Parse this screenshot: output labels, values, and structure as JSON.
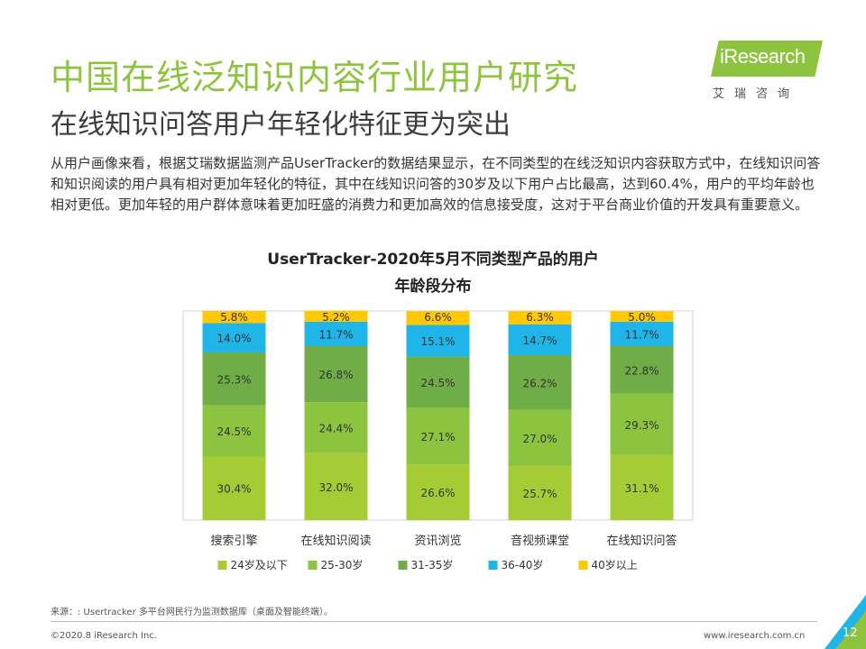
{
  "page": {
    "title": "中国在线泛知识内容行业用户研究",
    "subtitle": "在线知识问答用户年轻化特征更为突出",
    "intro": "从用户画像来看，根据艾瑞数据监测产品UserTracker的数据结果显示，在不同类型的在线泛知识内容获取方式中，在线知识问答和知识阅读的用户具有相对更加年轻化的特征，其中在线知识问答的30岁及以下用户占比最高，达到60.4%，用户的平均年龄也相对更低。更加年轻的用户群体意味着更加旺盛的消费力和更加高效的信息接受度，这对于平台商业价值的开发具有重要意义。",
    "logo_text": "iResearch",
    "logo_cn": "艾瑞咨询",
    "source": "来源：: Usertracker 多平台网民行为监测数据库（桌面及智能终端）。",
    "copyright": "©2020.8 iResearch Inc.",
    "website": "www.iresearch.com.cn",
    "page_number": "12",
    "brand_color": "#8cc43f"
  },
  "chart_data": {
    "type": "bar",
    "stacked": true,
    "title_line1": "UserTracker-2020年5月不同类型产品的用户",
    "title_line2": "年龄段分布",
    "categories": [
      "搜索引擎",
      "在线知识阅读",
      "资讯浏览",
      "音视频课堂",
      "在线知识问答"
    ],
    "series": [
      {
        "name": "24岁及以下",
        "color": "#a5cb35",
        "values": [
          30.4,
          32.0,
          26.6,
          25.7,
          31.1
        ]
      },
      {
        "name": "25-30岁",
        "color": "#8cc43f",
        "values": [
          24.5,
          24.4,
          27.1,
          27.0,
          29.3
        ]
      },
      {
        "name": "31-35岁",
        "color": "#70ad47",
        "values": [
          25.3,
          26.8,
          24.5,
          26.2,
          22.8
        ]
      },
      {
        "name": "36-40岁",
        "color": "#1fb5e8",
        "values": [
          14.0,
          11.7,
          15.1,
          14.7,
          11.7
        ]
      },
      {
        "name": "40岁以上",
        "color": "#ffc800",
        "values": [
          5.8,
          5.2,
          6.6,
          6.3,
          5.0
        ]
      }
    ],
    "value_suffix": "%",
    "ylim": [
      0,
      100
    ],
    "legend_position": "bottom",
    "grid": false
  }
}
